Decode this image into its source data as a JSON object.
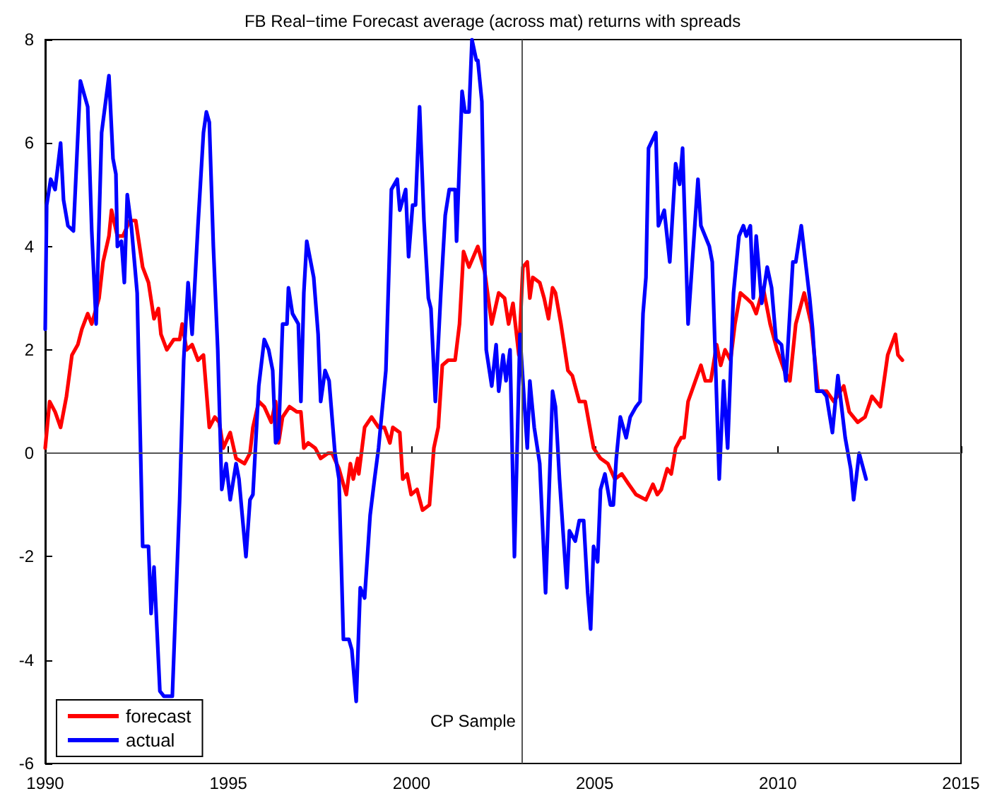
{
  "chart_data": {
    "type": "line",
    "title": "FB Real−time Forecast average (across mat) returns with spreads",
    "xlim": [
      1990,
      2015
    ],
    "xticks": [
      1990,
      1995,
      2000,
      2005,
      2010,
      2015
    ],
    "ylim": [
      -6,
      8
    ],
    "yticks": [
      -6,
      -4,
      -2,
      0,
      2,
      4,
      6,
      8
    ],
    "grid": false,
    "legend": "bottom left",
    "marker": "none",
    "line_style": "solid",
    "ref_lines": [
      {
        "axis": "y",
        "value": 0,
        "color": "#555555"
      },
      {
        "axis": "x",
        "value": 2003,
        "label": "CP Sample",
        "color": "#555555"
      }
    ],
    "series": [
      {
        "name": "forecast",
        "color": "#ff0000",
        "x": [
          1990.0,
          1990.12,
          1990.27,
          1990.42,
          1990.58,
          1990.73,
          1990.89,
          1991.0,
          1991.16,
          1991.27,
          1991.47,
          1991.58,
          1991.74,
          1991.81,
          1991.97,
          1992.12,
          1992.31,
          1992.47,
          1992.66,
          1992.82,
          1992.97,
          1993.09,
          1993.16,
          1993.32,
          1993.51,
          1993.67,
          1993.74,
          1993.86,
          1994.01,
          1994.17,
          1994.32,
          1994.48,
          1994.63,
          1994.75,
          1994.86,
          1995.05,
          1995.21,
          1995.44,
          1995.59,
          1995.67,
          1995.83,
          1995.98,
          1996.17,
          1996.29,
          1996.37,
          1996.48,
          1996.67,
          1996.87,
          1996.98,
          1997.06,
          1997.18,
          1997.37,
          1997.52,
          1997.72,
          1997.83,
          1998.02,
          1998.22,
          1998.33,
          1998.41,
          1998.53,
          1998.56,
          1998.72,
          1998.91,
          1999.1,
          1999.26,
          1999.41,
          1999.49,
          1999.68,
          1999.76,
          1999.88,
          1999.99,
          2000.15,
          2000.3,
          2000.49,
          2000.61,
          2000.73,
          2000.84,
          2001.0,
          2001.19,
          2001.31,
          2001.42,
          2001.57,
          2001.81,
          2002.0,
          2002.19,
          2002.38,
          2002.54,
          2002.65,
          2002.77,
          2002.93,
          2003.04,
          2003.16,
          2003.23,
          2003.31,
          2003.5,
          2003.62,
          2003.74,
          2003.85,
          2003.93,
          2004.08,
          2004.27,
          2004.39,
          2004.58,
          2004.74,
          2004.97,
          2005.16,
          2005.36,
          2005.55,
          2005.74,
          2005.93,
          2006.13,
          2006.4,
          2006.59,
          2006.71,
          2006.82,
          2006.98,
          2007.09,
          2007.21,
          2007.36,
          2007.44,
          2007.55,
          2007.75,
          2007.9,
          2008.02,
          2008.17,
          2008.33,
          2008.44,
          2008.56,
          2008.71,
          2008.83,
          2008.98,
          2009.14,
          2009.29,
          2009.41,
          2009.6,
          2009.79,
          2009.98,
          2010.18,
          2010.33,
          2010.49,
          2010.72,
          2010.91,
          2011.1,
          2011.33,
          2011.53,
          2011.8,
          2011.95,
          2012.18,
          2012.38,
          2012.57,
          2012.8,
          2013.0,
          2013.21,
          2013.28,
          2013.4
        ],
        "values": [
          0.1,
          1.0,
          0.8,
          0.5,
          1.1,
          1.9,
          2.1,
          2.4,
          2.7,
          2.5,
          3.0,
          3.7,
          4.2,
          4.7,
          4.2,
          4.2,
          4.5,
          4.5,
          3.6,
          3.3,
          2.6,
          2.8,
          2.3,
          2.0,
          2.2,
          2.2,
          2.5,
          2.0,
          2.1,
          1.8,
          1.9,
          0.5,
          0.7,
          0.6,
          0.1,
          0.4,
          -0.1,
          -0.2,
          0.0,
          0.5,
          1.0,
          0.9,
          0.6,
          1.0,
          0.2,
          0.7,
          0.9,
          0.8,
          0.8,
          0.1,
          0.2,
          0.1,
          -0.1,
          0.0,
          0.0,
          -0.3,
          -0.8,
          -0.2,
          -0.5,
          -0.1,
          -0.4,
          0.5,
          0.7,
          0.5,
          0.5,
          0.2,
          0.5,
          0.4,
          -0.5,
          -0.4,
          -0.8,
          -0.7,
          -1.1,
          -1.0,
          0.1,
          0.5,
          1.7,
          1.8,
          1.8,
          2.5,
          3.9,
          3.6,
          4.0,
          3.5,
          2.5,
          3.1,
          3.0,
          2.5,
          2.9,
          1.9,
          3.6,
          3.7,
          3.0,
          3.4,
          3.3,
          3.0,
          2.6,
          3.2,
          3.1,
          2.5,
          1.6,
          1.5,
          1.0,
          1.0,
          0.1,
          -0.1,
          -0.2,
          -0.5,
          -0.4,
          -0.6,
          -0.8,
          -0.9,
          -0.6,
          -0.8,
          -0.7,
          -0.3,
          -0.4,
          0.1,
          0.3,
          0.3,
          1.0,
          1.4,
          1.7,
          1.4,
          1.4,
          2.1,
          1.7,
          2.0,
          1.8,
          2.5,
          3.1,
          3.0,
          2.9,
          2.7,
          3.2,
          2.5,
          2.0,
          1.6,
          1.4,
          2.5,
          3.1,
          2.5,
          1.2,
          1.2,
          1.0,
          1.3,
          0.8,
          0.6,
          0.7,
          1.1,
          0.9,
          1.9,
          2.3,
          1.9,
          1.8
        ]
      },
      {
        "name": "actual",
        "color": "#0000ff",
        "x": [
          1990.0,
          1990.04,
          1990.15,
          1990.27,
          1990.42,
          1990.5,
          1990.62,
          1990.77,
          1990.96,
          1991.16,
          1991.27,
          1991.39,
          1991.54,
          1991.74,
          1991.85,
          1991.93,
          1991.97,
          1992.08,
          1992.16,
          1992.24,
          1992.35,
          1992.51,
          1992.66,
          1992.82,
          1992.89,
          1992.97,
          1993.13,
          1993.24,
          1993.47,
          1993.67,
          1993.78,
          1993.9,
          1994.01,
          1994.17,
          1994.32,
          1994.4,
          1994.48,
          1994.59,
          1994.71,
          1994.82,
          1994.94,
          1995.05,
          1995.21,
          1995.29,
          1995.48,
          1995.59,
          1995.67,
          1995.83,
          1995.98,
          1996.1,
          1996.21,
          1996.29,
          1996.37,
          1996.48,
          1996.6,
          1996.64,
          1996.75,
          1996.91,
          1996.98,
          1997.06,
          1997.14,
          1997.33,
          1997.45,
          1997.52,
          1997.64,
          1997.75,
          1997.91,
          1998.02,
          1998.14,
          1998.29,
          1998.37,
          1998.49,
          1998.6,
          1998.72,
          1998.87,
          1998.99,
          1999.1,
          1999.3,
          1999.45,
          1999.61,
          1999.68,
          1999.84,
          1999.92,
          2000.03,
          2000.11,
          2000.22,
          2000.34,
          2000.46,
          2000.53,
          2000.65,
          2000.8,
          2000.92,
          2001.03,
          2001.19,
          2001.23,
          2001.38,
          2001.46,
          2001.57,
          2001.65,
          2001.77,
          2001.81,
          2001.92,
          2002.04,
          2002.19,
          2002.31,
          2002.38,
          2002.5,
          2002.58,
          2002.69,
          2002.81,
          2002.96,
          2003.16,
          2003.23,
          2003.35,
          2003.5,
          2003.66,
          2003.85,
          2003.93,
          2004.04,
          2004.24,
          2004.31,
          2004.47,
          2004.58,
          2004.7,
          2004.81,
          2004.89,
          2004.97,
          2005.08,
          2005.16,
          2005.28,
          2005.43,
          2005.51,
          2005.59,
          2005.7,
          2005.86,
          2005.97,
          2006.13,
          2006.24,
          2006.32,
          2006.4,
          2006.47,
          2006.67,
          2006.74,
          2006.9,
          2007.05,
          2007.21,
          2007.32,
          2007.4,
          2007.55,
          2007.82,
          2007.9,
          2008.13,
          2008.21,
          2008.4,
          2008.52,
          2008.63,
          2008.79,
          2008.94,
          2009.06,
          2009.14,
          2009.25,
          2009.33,
          2009.41,
          2009.56,
          2009.71,
          2009.83,
          2009.95,
          2010.1,
          2010.22,
          2010.41,
          2010.49,
          2010.64,
          2010.87,
          2010.95,
          2011.06,
          2011.22,
          2011.33,
          2011.49,
          2011.64,
          2011.84,
          2011.99,
          2012.07,
          2012.22,
          2012.41
        ],
        "values": [
          2.4,
          4.8,
          5.3,
          5.1,
          6.0,
          4.9,
          4.4,
          4.3,
          7.2,
          6.7,
          4.3,
          2.5,
          6.2,
          7.3,
          5.7,
          5.4,
          4.0,
          4.1,
          3.3,
          5.0,
          4.4,
          3.1,
          -1.8,
          -1.8,
          -3.1,
          -2.2,
          -4.6,
          -4.7,
          -4.7,
          -0.9,
          1.8,
          3.3,
          2.3,
          4.4,
          6.2,
          6.6,
          6.4,
          4.0,
          2.0,
          -0.7,
          -0.2,
          -0.9,
          -0.2,
          -0.5,
          -2.0,
          -0.9,
          -0.8,
          1.3,
          2.2,
          2.0,
          1.6,
          0.2,
          0.3,
          2.5,
          2.5,
          3.2,
          2.7,
          2.5,
          1.0,
          3.1,
          4.1,
          3.4,
          2.3,
          1.0,
          1.6,
          1.4,
          0.0,
          -0.5,
          -3.6,
          -3.6,
          -3.8,
          -4.8,
          -2.6,
          -2.8,
          -1.2,
          -0.5,
          0.1,
          1.6,
          5.1,
          5.3,
          4.7,
          5.1,
          3.8,
          4.8,
          4.8,
          6.7,
          4.5,
          3.0,
          2.8,
          1.0,
          3.1,
          4.6,
          5.1,
          5.1,
          4.1,
          7.0,
          6.6,
          6.6,
          8.0,
          7.6,
          7.6,
          6.8,
          2.0,
          1.3,
          2.1,
          1.2,
          1.9,
          1.4,
          2.0,
          -2.0,
          2.3,
          0.1,
          1.4,
          0.5,
          -0.2,
          -2.7,
          1.2,
          0.9,
          -0.5,
          -2.6,
          -1.5,
          -1.7,
          -1.3,
          -1.3,
          -2.7,
          -3.4,
          -1.8,
          -2.1,
          -0.7,
          -0.4,
          -1.0,
          -1.0,
          -0.1,
          0.7,
          0.3,
          0.7,
          0.9,
          1.0,
          2.7,
          3.4,
          5.9,
          6.2,
          4.4,
          4.7,
          3.7,
          5.6,
          5.2,
          5.9,
          2.5,
          5.3,
          4.4,
          4.0,
          3.7,
          -0.5,
          1.4,
          0.1,
          3.1,
          4.2,
          4.4,
          4.2,
          4.4,
          3.0,
          4.2,
          2.9,
          3.6,
          3.2,
          2.2,
          2.1,
          1.4,
          3.7,
          3.7,
          4.4,
          3.0,
          2.4,
          1.2,
          1.2,
          1.1,
          0.4,
          1.5,
          0.3,
          -0.3,
          -0.9,
          0.0,
          -0.5
        ]
      }
    ]
  }
}
